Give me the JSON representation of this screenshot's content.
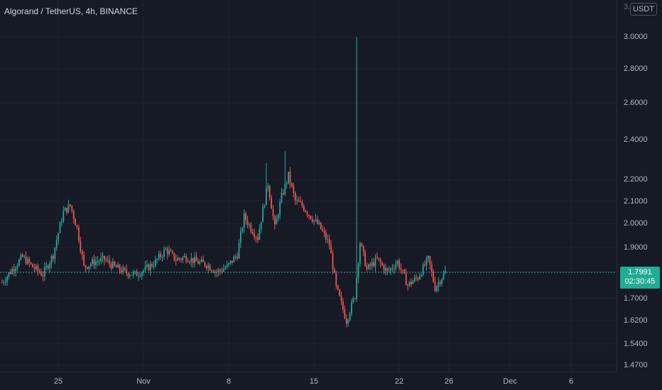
{
  "legend": {
    "title": "Algorand / TetherUS, 4h, BINANCE"
  },
  "axis": {
    "unit": "USDT",
    "top_partial_label": "3.2000"
  },
  "colors": {
    "up": "#26a69a",
    "down": "#ef5350",
    "grid": "#1f2330",
    "last_price_line": "#22ab94"
  },
  "last_price": {
    "value": "1.7991",
    "countdown": "02:30:45"
  },
  "chart_data": {
    "type": "candlestick",
    "title": "Algorand / TetherUS, 4h, BINANCE",
    "scale": "log",
    "ylim": [
      1.45,
      3.25
    ],
    "y_ticks": [
      1.47,
      1.54,
      1.62,
      1.7,
      1.8,
      1.9,
      2.0,
      2.1,
      2.2,
      2.4,
      2.6,
      2.8,
      3.0
    ],
    "y_tick_labels": [
      "1.4700",
      "1.5400",
      "1.6200",
      "1.7000",
      "1.8000",
      "1.9000",
      "2.0000",
      "2.1000",
      "2.2000",
      "2.4000",
      "2.6000",
      "2.8000",
      "3.0000"
    ],
    "x_ticks": [
      "25",
      "Nov",
      "8",
      "15",
      "22",
      "26",
      "Dec",
      "6"
    ],
    "guide_points": [
      [
        0,
        1.76
      ],
      [
        6,
        1.81
      ],
      [
        12,
        1.86
      ],
      [
        18,
        1.82
      ],
      [
        24,
        1.79
      ],
      [
        30,
        1.87
      ],
      [
        36,
        2.05
      ],
      [
        40,
        2.08
      ],
      [
        44,
        1.98
      ],
      [
        48,
        1.82
      ],
      [
        54,
        1.84
      ],
      [
        60,
        1.85
      ],
      [
        66,
        1.82
      ],
      [
        72,
        1.8
      ],
      [
        78,
        1.79
      ],
      [
        84,
        1.81
      ],
      [
        90,
        1.84
      ],
      [
        96,
        1.89
      ],
      [
        102,
        1.85
      ],
      [
        108,
        1.86
      ],
      [
        114,
        1.84
      ],
      [
        120,
        1.83
      ],
      [
        126,
        1.8
      ],
      [
        132,
        1.82
      ],
      [
        138,
        1.87
      ],
      [
        142,
        2.03
      ],
      [
        146,
        1.98
      ],
      [
        150,
        1.94
      ],
      [
        156,
        2.18
      ],
      [
        160,
        1.98
      ],
      [
        164,
        2.12
      ],
      [
        168,
        2.22
      ],
      [
        172,
        2.1
      ],
      [
        176,
        2.08
      ],
      [
        180,
        2.04
      ],
      [
        186,
        1.99
      ],
      [
        192,
        1.91
      ],
      [
        196,
        1.74
      ],
      [
        202,
        1.62
      ],
      [
        207,
        1.71
      ],
      [
        210,
        1.92
      ],
      [
        214,
        1.81
      ],
      [
        220,
        1.85
      ],
      [
        226,
        1.8
      ],
      [
        232,
        1.84
      ],
      [
        238,
        1.75
      ],
      [
        244,
        1.78
      ],
      [
        250,
        1.85
      ],
      [
        254,
        1.74
      ],
      [
        260,
        1.8
      ]
    ],
    "spikes": [
      {
        "index": 208,
        "high": 3.0
      },
      {
        "index": 166,
        "high": 2.34
      },
      {
        "index": 155,
        "high": 2.28
      }
    ],
    "num_candles": 261
  }
}
